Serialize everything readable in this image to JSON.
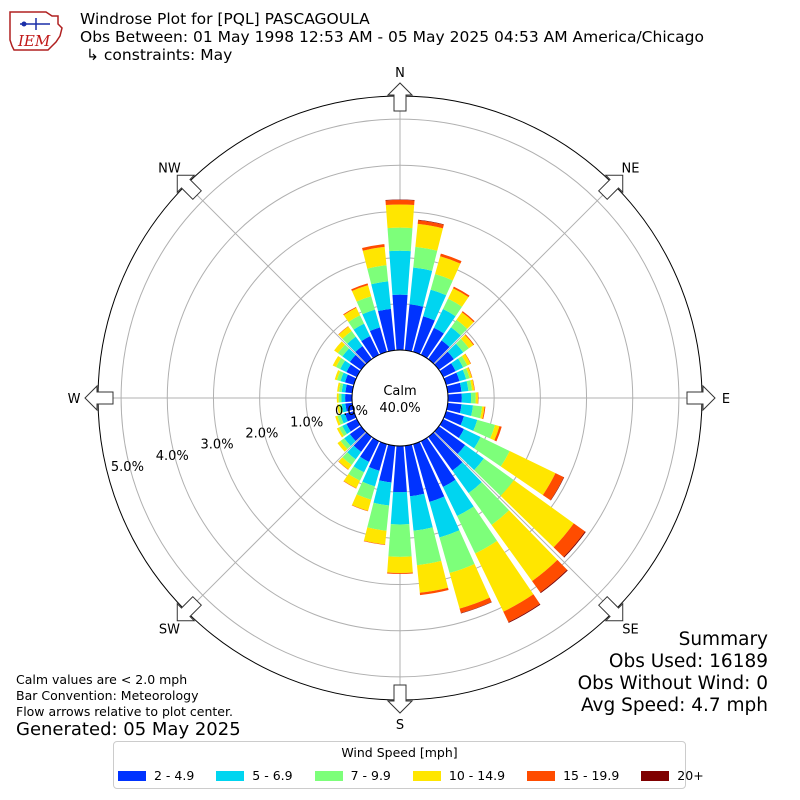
{
  "header": {
    "logo_text": "IEM",
    "title": "Windrose Plot for [PQL] PASCAGOULA",
    "subtitle": "Obs Between: 01 May 1998 12:53 AM - 05 May 2025 04:53 AM America/Chicago",
    "constraints": "↳ constraints: May"
  },
  "summary": {
    "heading": "Summary",
    "obs_used": "Obs Used: 16189",
    "obs_without_wind": "Obs Without Wind: 0",
    "avg_speed": "Avg Speed: 4.7 mph"
  },
  "notes": {
    "calm_def": "Calm values are < 2.0 mph",
    "bar_convention": "Bar Convention: Meteorology",
    "flow_arrows": "Flow arrows relative to plot center.",
    "generated": "Generated: 05 May 2025"
  },
  "legend": {
    "title": "Wind Speed [mph]",
    "items": [
      {
        "label": "2 - 4.9",
        "color": "#0033ff"
      },
      {
        "label": "5 - 6.9",
        "color": "#00d5f0"
      },
      {
        "label": "7 - 9.9",
        "color": "#7dff7a"
      },
      {
        "label": "10 - 14.9",
        "color": "#ffe600"
      },
      {
        "label": "15 - 19.9",
        "color": "#ff4c00"
      },
      {
        "label": "20+",
        "color": "#7f0000"
      }
    ]
  },
  "chart_data": {
    "type": "windrose",
    "calm_label": "Calm",
    "calm_percent": "40.0%",
    "radial_unit": "%",
    "radial_origin": 40.0,
    "radial_max": 45.5,
    "radial_ticks": [
      0,
      1,
      2,
      3,
      4,
      5
    ],
    "radial_tick_labels": [
      "0.0%",
      "1.0%",
      "2.0%",
      "3.0%",
      "4.0%",
      "5.0%"
    ],
    "direction_labels": [
      {
        "label": "N",
        "deg": 0
      },
      {
        "label": "NE",
        "deg": 45
      },
      {
        "label": "E",
        "deg": 90
      },
      {
        "label": "SE",
        "deg": 135
      },
      {
        "label": "S",
        "deg": 180
      },
      {
        "label": "SW",
        "deg": 225
      },
      {
        "label": "W",
        "deg": 270
      },
      {
        "label": "NW",
        "deg": 315
      }
    ],
    "bin_width_deg": 10,
    "directions_deg": [
      0,
      10,
      20,
      30,
      40,
      50,
      60,
      70,
      80,
      90,
      100,
      110,
      120,
      130,
      140,
      150,
      160,
      170,
      180,
      190,
      200,
      210,
      220,
      230,
      240,
      250,
      260,
      270,
      280,
      290,
      300,
      310,
      320,
      330,
      340,
      350
    ],
    "series": [
      {
        "name": "2 - 4.9",
        "values": [
          1.2,
          1.0,
          0.8,
          0.65,
          0.5,
          0.4,
          0.3,
          0.3,
          0.3,
          0.3,
          0.3,
          0.4,
          0.5,
          0.7,
          0.9,
          1.1,
          1.3,
          1.1,
          1.0,
          0.8,
          0.6,
          0.5,
          0.4,
          0.3,
          0.25,
          0.2,
          0.15,
          0.15,
          0.15,
          0.2,
          0.25,
          0.3,
          0.35,
          0.45,
          0.55,
          0.9
        ]
      },
      {
        "name": "5 - 6.9",
        "values": [
          0.95,
          0.8,
          0.6,
          0.45,
          0.35,
          0.25,
          0.18,
          0.15,
          0.15,
          0.2,
          0.25,
          0.3,
          0.4,
          0.5,
          0.6,
          0.7,
          0.8,
          0.75,
          0.7,
          0.5,
          0.35,
          0.25,
          0.2,
          0.15,
          0.1,
          0.1,
          0.08,
          0.08,
          0.08,
          0.1,
          0.15,
          0.2,
          0.25,
          0.3,
          0.4,
          0.6
        ]
      },
      {
        "name": "7 - 9.9",
        "values": [
          0.5,
          0.45,
          0.35,
          0.25,
          0.2,
          0.15,
          0.1,
          0.08,
          0.08,
          0.1,
          0.2,
          0.4,
          0.7,
          0.8,
          0.85,
          0.9,
          0.8,
          0.75,
          0.7,
          0.55,
          0.3,
          0.2,
          0.15,
          0.1,
          0.08,
          0.07,
          0.06,
          0.06,
          0.06,
          0.08,
          0.1,
          0.12,
          0.15,
          0.2,
          0.3,
          0.35
        ]
      },
      {
        "name": "10 - 14.9",
        "values": [
          0.5,
          0.5,
          0.4,
          0.25,
          0.2,
          0.12,
          0.08,
          0.05,
          0.05,
          0.05,
          0.05,
          0.1,
          1.1,
          1.6,
          1.5,
          1.4,
          0.8,
          0.6,
          0.35,
          0.3,
          0.25,
          0.18,
          0.12,
          0.08,
          0.05,
          0.05,
          0.04,
          0.04,
          0.04,
          0.05,
          0.08,
          0.1,
          0.12,
          0.18,
          0.25,
          0.4
        ]
      },
      {
        "name": "15 - 19.9",
        "values": [
          0.1,
          0.08,
          0.06,
          0.04,
          0.03,
          0.02,
          0.01,
          0.01,
          0.01,
          0.01,
          0.02,
          0.05,
          0.2,
          0.3,
          0.3,
          0.25,
          0.1,
          0.05,
          0.02,
          0.01,
          0.01,
          0.01,
          0.01,
          0,
          0,
          0,
          0,
          0,
          0,
          0,
          0,
          0,
          0.01,
          0.02,
          0.04,
          0.06
        ]
      },
      {
        "name": "20+",
        "values": [
          0.01,
          0.01,
          0,
          0,
          0,
          0,
          0,
          0,
          0,
          0,
          0,
          0,
          0.01,
          0.02,
          0.02,
          0.02,
          0.01,
          0,
          0,
          0,
          0,
          0,
          0,
          0,
          0,
          0,
          0,
          0,
          0,
          0,
          0,
          0,
          0,
          0,
          0,
          0
        ]
      }
    ]
  }
}
